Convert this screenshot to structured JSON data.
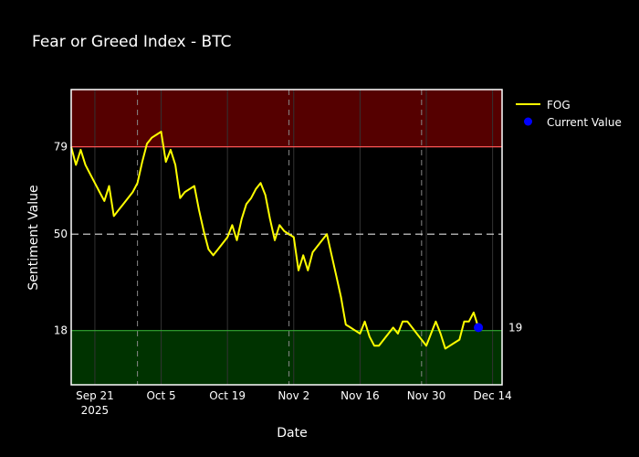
{
  "chart_data": {
    "type": "line",
    "title": "Fear or Greed Index - BTC",
    "xlabel": "Date",
    "ylabel": "Sentiment Value",
    "x_tick_labels": [
      {
        "date": "2025-09-21",
        "label": "Sep 21",
        "sublabel": "2025"
      },
      {
        "date": "2025-10-05",
        "label": "Oct 5"
      },
      {
        "date": "2025-10-19",
        "label": "Oct 19"
      },
      {
        "date": "2025-11-02",
        "label": "Nov 2"
      },
      {
        "date": "2025-11-16",
        "label": "Nov 16"
      },
      {
        "date": "2025-11-30",
        "label": "Nov 30"
      },
      {
        "date": "2025-12-14",
        "label": "Dec 14"
      }
    ],
    "xlim": [
      "2025-09-16",
      "2025-12-16"
    ],
    "ylim": [
      0,
      98
    ],
    "y_ticks": [
      18,
      50,
      79
    ],
    "reference_lines": [
      {
        "value": 79,
        "color": "#ff5555"
      },
      {
        "value": 50,
        "color": "#dddddd",
        "dashed": true
      },
      {
        "value": 18,
        "color": "#33aa33"
      }
    ],
    "zones": [
      {
        "from": 79,
        "to": 98,
        "color": "#550000"
      },
      {
        "from": 0,
        "to": 18,
        "color": "#003300"
      }
    ],
    "vertical_markers": [
      "2025-09-30",
      "2025-11-01",
      "2025-11-29"
    ],
    "grid": true,
    "legend_position": "top-right",
    "series": [
      {
        "name": "FOG",
        "color": "#ffff00",
        "x": [
          "2025-09-16",
          "2025-09-17",
          "2025-09-18",
          "2025-09-19",
          "2025-09-20",
          "2025-09-21",
          "2025-09-22",
          "2025-09-23",
          "2025-09-24",
          "2025-09-25",
          "2025-09-26",
          "2025-09-27",
          "2025-09-28",
          "2025-09-29",
          "2025-09-30",
          "2025-10-01",
          "2025-10-02",
          "2025-10-03",
          "2025-10-04",
          "2025-10-05",
          "2025-10-06",
          "2025-10-07",
          "2025-10-08",
          "2025-10-09",
          "2025-10-10",
          "2025-10-11",
          "2025-10-12",
          "2025-10-13",
          "2025-10-14",
          "2025-10-15",
          "2025-10-16",
          "2025-10-17",
          "2025-10-18",
          "2025-10-19",
          "2025-10-20",
          "2025-10-21",
          "2025-10-22",
          "2025-10-23",
          "2025-10-24",
          "2025-10-25",
          "2025-10-26",
          "2025-10-27",
          "2025-10-28",
          "2025-10-29",
          "2025-10-30",
          "2025-10-31",
          "2025-11-01",
          "2025-11-02",
          "2025-11-03",
          "2025-11-04",
          "2025-11-05",
          "2025-11-06",
          "2025-11-07",
          "2025-11-08",
          "2025-11-09",
          "2025-11-10",
          "2025-11-11",
          "2025-11-12",
          "2025-11-13",
          "2025-11-14",
          "2025-11-15",
          "2025-11-16",
          "2025-11-17",
          "2025-11-18",
          "2025-11-19",
          "2025-11-20",
          "2025-11-21",
          "2025-11-22",
          "2025-11-23",
          "2025-11-24",
          "2025-11-25",
          "2025-11-26",
          "2025-11-27",
          "2025-11-28",
          "2025-11-29",
          "2025-11-30",
          "2025-12-01",
          "2025-12-02",
          "2025-12-03",
          "2025-12-04",
          "2025-12-05",
          "2025-12-06",
          "2025-12-07",
          "2025-12-08",
          "2025-12-09",
          "2025-12-10",
          "2025-12-11"
        ],
        "y": [
          79,
          73,
          78,
          73,
          70,
          67,
          64,
          61,
          66,
          56,
          58,
          60,
          62,
          64,
          67,
          74,
          80,
          82,
          83,
          84,
          74,
          78,
          73,
          62,
          64,
          65,
          66,
          58,
          51,
          45,
          43,
          45,
          47,
          49,
          53,
          48,
          55,
          60,
          62,
          65,
          67,
          63,
          55,
          48,
          53,
          51,
          50,
          49,
          38,
          43,
          38,
          44,
          46,
          48,
          50,
          43,
          36,
          29,
          20,
          19,
          18,
          17,
          21,
          16,
          13,
          13,
          15,
          17,
          19,
          17,
          21,
          21,
          19,
          17,
          15,
          13,
          17,
          21,
          17,
          12,
          13,
          14,
          15,
          21,
          21,
          24,
          19
        ]
      },
      {
        "name": "Current Value",
        "color": "#0000ff",
        "x": [
          "2025-12-11"
        ],
        "y": [
          19
        ],
        "label": "19"
      }
    ]
  }
}
